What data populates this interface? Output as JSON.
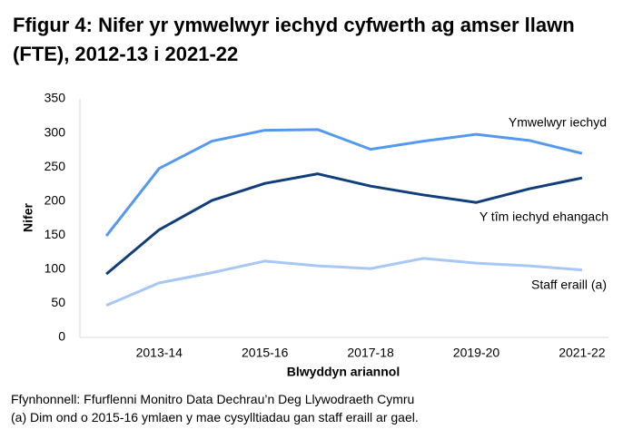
{
  "chart_data": {
    "type": "line",
    "title": "Ffigur 4: Nifer yr ymwelwyr iechyd cyfwerth ag amser llawn (FTE), 2012-13 i 2021-22",
    "x_label": "Blwyddyn ariannol",
    "y_label": "Nifer",
    "categories": [
      null,
      "2013-14",
      null,
      "2015-16",
      null,
      "2017-18",
      null,
      "2019-20",
      null,
      "2021-22"
    ],
    "series": [
      {
        "name": "Ymwelwyr iechyd",
        "color": "#5599ee",
        "values": [
          149,
          248,
          288,
          304,
          305,
          276,
          288,
          298,
          289,
          270
        ]
      },
      {
        "name": "Y tîm iechyd ehangach",
        "color": "#0f3e7a",
        "values": [
          93,
          158,
          201,
          226,
          240,
          222,
          209,
          198,
          218,
          234
        ]
      },
      {
        "name": "Staff eraill (a)",
        "color": "#a7c7f4",
        "values": [
          47,
          80,
          95,
          112,
          105,
          101,
          116,
          109,
          105,
          99
        ]
      }
    ],
    "ylim": [
      0,
      350
    ],
    "yticks": [
      0,
      50,
      100,
      150,
      200,
      250,
      300,
      350
    ],
    "grid": false,
    "notes": [
      "Ffynhonnell: Ffurflenni Monitro Data Dechrau’n Deg Llywodraeth Cymru",
      "(a) Dim ond o 2015-16 ymlaen y mae cysylltiadau gan staff eraill ar gael."
    ]
  }
}
